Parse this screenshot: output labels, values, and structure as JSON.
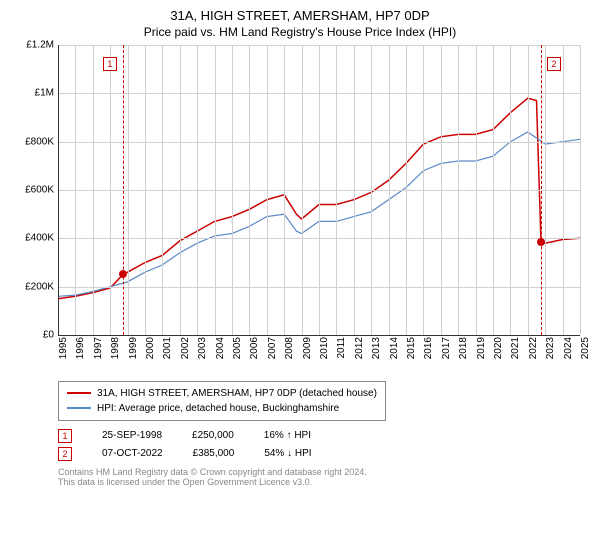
{
  "title": "31A, HIGH STREET, AMERSHAM, HP7 0DP",
  "subtitle": "Price paid vs. HM Land Registry's House Price Index (HPI)",
  "chart": {
    "type": "line",
    "ylim": [
      0,
      1200000
    ],
    "xlim": [
      1995,
      2025
    ],
    "y_ticks": [
      0,
      200000,
      400000,
      600000,
      800000,
      1000000,
      1200000
    ],
    "y_tick_labels": [
      "£0",
      "£200K",
      "£400K",
      "£600K",
      "£800K",
      "£1M",
      "£1.2M"
    ],
    "x_ticks": [
      1995,
      1996,
      1997,
      1998,
      1999,
      2000,
      2001,
      2002,
      2003,
      2004,
      2005,
      2006,
      2007,
      2008,
      2009,
      2010,
      2011,
      2012,
      2013,
      2014,
      2015,
      2016,
      2017,
      2018,
      2019,
      2020,
      2021,
      2022,
      2023,
      2024,
      2025
    ],
    "grid_color": "#d0d0d0",
    "axis_color": "#333333",
    "background_color": "#ffffff",
    "series": [
      {
        "name": "property",
        "color": "#cc0000",
        "width": 1.5,
        "data": [
          [
            1995,
            150000
          ],
          [
            1996,
            160000
          ],
          [
            1997,
            175000
          ],
          [
            1998,
            195000
          ],
          [
            1998.73,
            250000
          ],
          [
            1999,
            260000
          ],
          [
            2000,
            300000
          ],
          [
            2001,
            330000
          ],
          [
            2002,
            390000
          ],
          [
            2003,
            430000
          ],
          [
            2004,
            470000
          ],
          [
            2005,
            490000
          ],
          [
            2006,
            520000
          ],
          [
            2007,
            560000
          ],
          [
            2008,
            580000
          ],
          [
            2008.7,
            500000
          ],
          [
            2009,
            480000
          ],
          [
            2010,
            540000
          ],
          [
            2011,
            540000
          ],
          [
            2012,
            560000
          ],
          [
            2013,
            590000
          ],
          [
            2014,
            640000
          ],
          [
            2015,
            710000
          ],
          [
            2016,
            790000
          ],
          [
            2017,
            820000
          ],
          [
            2018,
            830000
          ],
          [
            2019,
            830000
          ],
          [
            2020,
            850000
          ],
          [
            2021,
            920000
          ],
          [
            2022,
            980000
          ],
          [
            2022.5,
            970000
          ],
          [
            2022.76,
            385000
          ],
          [
            2023,
            380000
          ],
          [
            2024,
            395000
          ],
          [
            2025,
            400000
          ]
        ]
      },
      {
        "name": "hpi",
        "color": "#5a8ac6",
        "width": 1.2,
        "data": [
          [
            1995,
            160000
          ],
          [
            1996,
            165000
          ],
          [
            1997,
            180000
          ],
          [
            1998,
            200000
          ],
          [
            1999,
            220000
          ],
          [
            2000,
            260000
          ],
          [
            2001,
            290000
          ],
          [
            2002,
            340000
          ],
          [
            2003,
            380000
          ],
          [
            2004,
            410000
          ],
          [
            2005,
            420000
          ],
          [
            2006,
            450000
          ],
          [
            2007,
            490000
          ],
          [
            2008,
            500000
          ],
          [
            2008.7,
            430000
          ],
          [
            2009,
            420000
          ],
          [
            2010,
            470000
          ],
          [
            2011,
            470000
          ],
          [
            2012,
            490000
          ],
          [
            2013,
            510000
          ],
          [
            2014,
            560000
          ],
          [
            2015,
            610000
          ],
          [
            2016,
            680000
          ],
          [
            2017,
            710000
          ],
          [
            2018,
            720000
          ],
          [
            2019,
            720000
          ],
          [
            2020,
            740000
          ],
          [
            2021,
            800000
          ],
          [
            2022,
            840000
          ],
          [
            2023,
            790000
          ],
          [
            2024,
            800000
          ],
          [
            2025,
            810000
          ]
        ]
      }
    ],
    "markers": [
      {
        "id": "1",
        "x": 1998.73,
        "y": 250000,
        "color": "#cc0000"
      },
      {
        "id": "2",
        "x": 2022.76,
        "y": 385000,
        "color": "#cc0000"
      }
    ]
  },
  "legend": {
    "items": [
      {
        "color": "#cc0000",
        "label": "31A, HIGH STREET, AMERSHAM, HP7 0DP (detached house)"
      },
      {
        "color": "#5a8ac6",
        "label": "HPI: Average price, detached house, Buckinghamshire"
      }
    ]
  },
  "events": [
    {
      "id": "1",
      "date": "25-SEP-1998",
      "price": "£250,000",
      "delta": "16% ↑ HPI",
      "color": "#cc0000"
    },
    {
      "id": "2",
      "date": "07-OCT-2022",
      "price": "£385,000",
      "delta": "54% ↓ HPI",
      "color": "#cc0000"
    }
  ],
  "footnote_line1": "Contains HM Land Registry data © Crown copyright and database right 2024.",
  "footnote_line2": "This data is licensed under the Open Government Licence v3.0."
}
